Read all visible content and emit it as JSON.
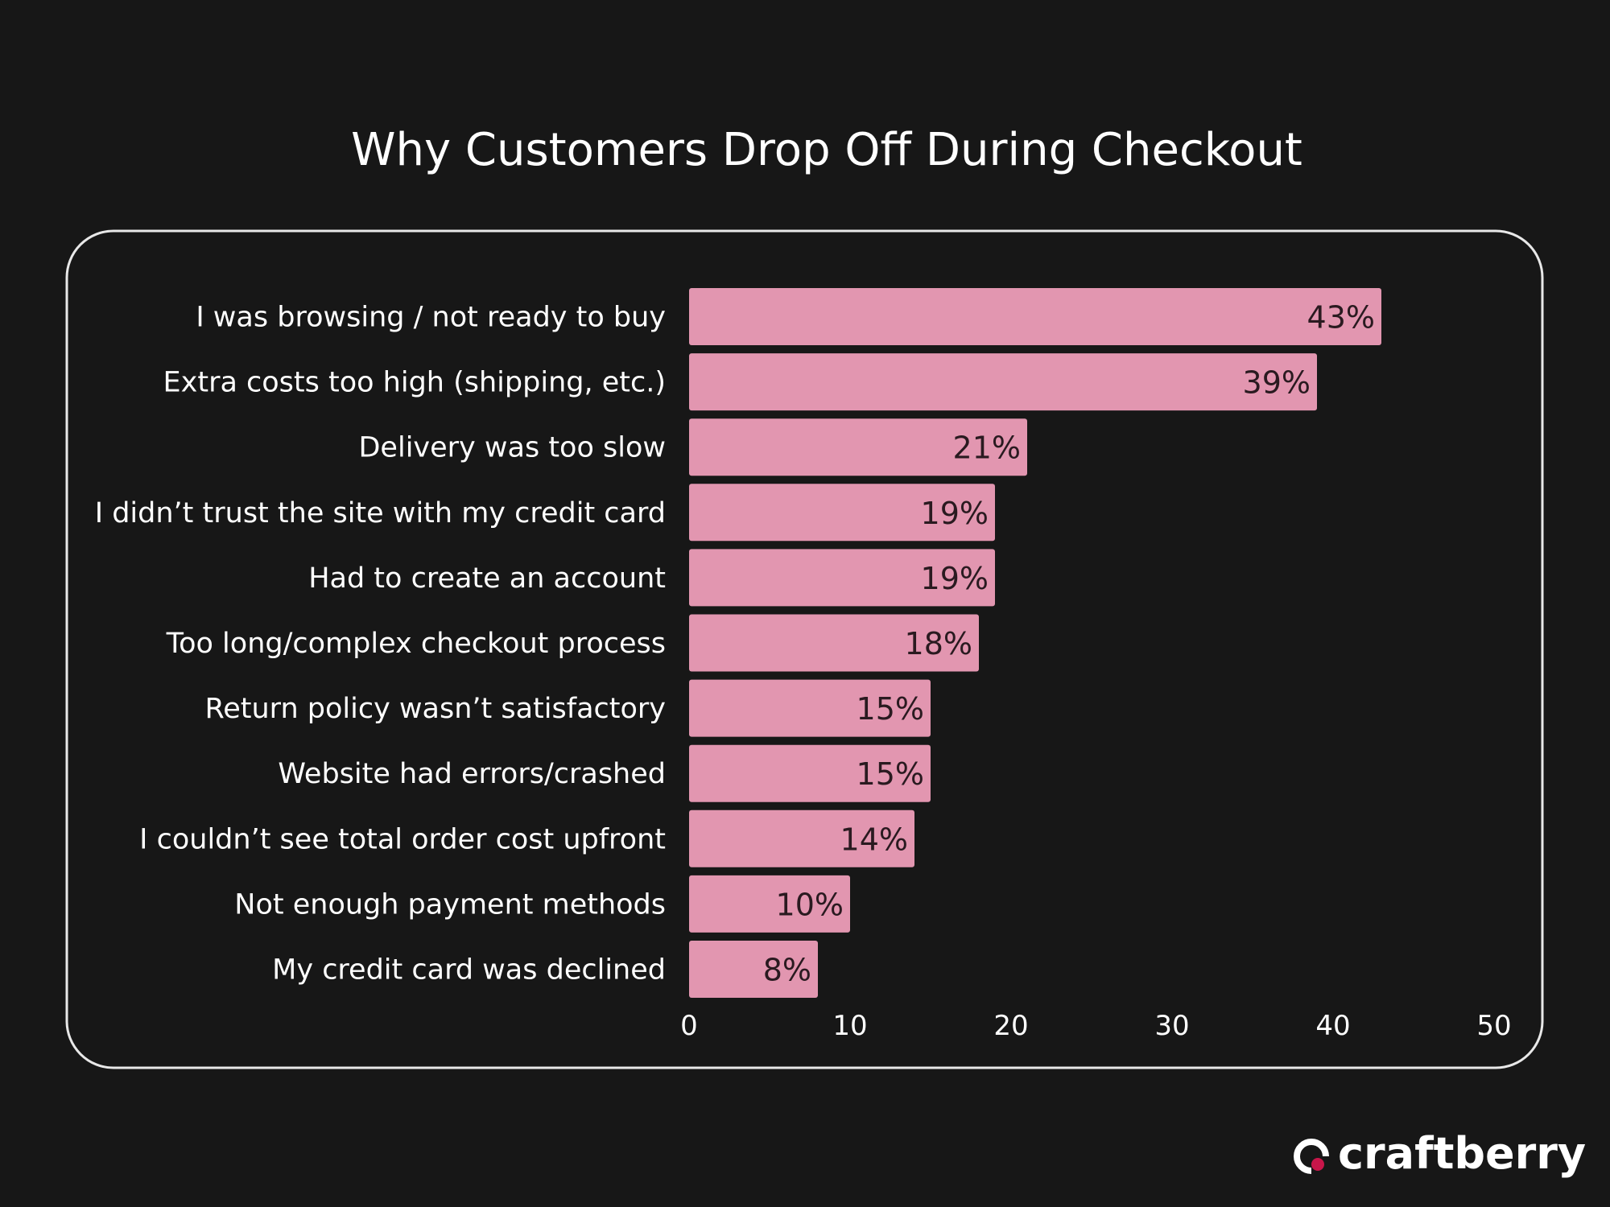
{
  "chart_data": {
    "type": "bar",
    "orientation": "horizontal",
    "title": "Why Customers Drop Off During Checkout",
    "categories": [
      "I was browsing / not ready to buy",
      "Extra costs too high (shipping, etc.)",
      "Delivery was too slow",
      "I didn’t trust the site with my credit card",
      "Had to create an account",
      "Too long/complex checkout process",
      "Return policy wasn’t satisfactory",
      "Website had errors/crashed",
      "I couldn’t see total order cost upfront",
      "Not enough payment methods",
      "My credit card was declined"
    ],
    "values": [
      43,
      39,
      21,
      19,
      19,
      18,
      15,
      15,
      14,
      10,
      8
    ],
    "data_labels": [
      "43%",
      "39%",
      "21%",
      "19%",
      "19%",
      "18%",
      "15%",
      "15%",
      "14%",
      "10%",
      "8%"
    ],
    "xlim": [
      0,
      50
    ],
    "xticks": [
      "0",
      "10",
      "20",
      "30",
      "40",
      "50"
    ],
    "xlabel": "",
    "ylabel": "",
    "grid": false,
    "legend": "none",
    "colors": {
      "bar": "#e296b0",
      "background": "#171717",
      "frame": "#e8e8e8",
      "logo_dot": "#c8164a"
    }
  },
  "brand": {
    "name": "craftberry"
  }
}
